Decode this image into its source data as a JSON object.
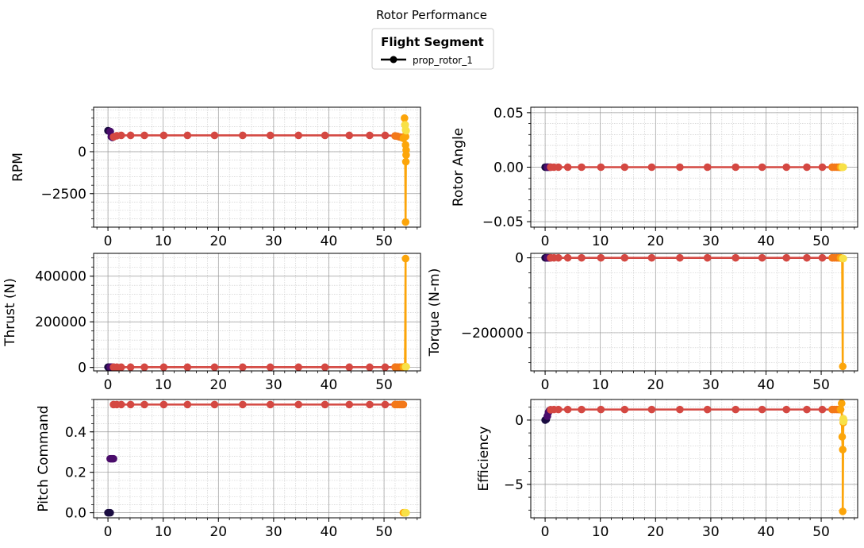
{
  "figure": {
    "title": "Rotor Performance",
    "legend": {
      "title": "Flight Segment",
      "entries": [
        "prop_rotor_1"
      ],
      "placement": "top-center"
    }
  },
  "colors": {
    "seg0": "#1a0c41",
    "seg1": "#4a0c6b",
    "seg2": "#d44842",
    "seg3": "#f37819",
    "seg4": "#fca50a",
    "seg5": "#f8e147",
    "grid_major": "#9a9a9a",
    "grid_minor": "#c8c8c8"
  },
  "chart_data": [
    {
      "type": "line",
      "name": "rpm",
      "ylabel": "RPM",
      "xlabel": "",
      "xlim": [
        -2.6,
        56.6
      ],
      "ylim": [
        -4500,
        2650
      ],
      "xticks": [
        0,
        10,
        20,
        30,
        40,
        50
      ],
      "yticks": [
        0,
        -2500
      ],
      "ytick_labels": [
        "0",
        "−2500"
      ],
      "grid": true,
      "series": [
        {
          "color": "#1a0c41",
          "x": [
            0,
            0.2,
            0.4
          ],
          "y": [
            1250,
            1230,
            1200
          ]
        },
        {
          "color": "#4a0c6b",
          "x": [
            0.4,
            0.6,
            0.8,
            1.0
          ],
          "y": [
            1200,
            900,
            850,
            880
          ]
        },
        {
          "color": "#d44842",
          "x": [
            1.0,
            1.6,
            2.4,
            4.1,
            6.6,
            10.1,
            14.4,
            19.3,
            24.4,
            29.4,
            34.5,
            39.3,
            43.7,
            47.4,
            50.2,
            52.0
          ],
          "y": [
            880,
            950,
            970,
            970,
            970,
            970,
            970,
            970,
            970,
            970,
            970,
            970,
            970,
            970,
            970,
            940
          ]
        },
        {
          "color": "#f37819",
          "x": [
            52.0,
            52.4,
            52.8,
            53.1,
            53.3,
            53.5
          ],
          "y": [
            940,
            920,
            880,
            860,
            840,
            800
          ]
        },
        {
          "color": "#fca50a",
          "x": [
            53.5,
            53.7,
            53.8,
            53.9,
            53.9,
            54.0,
            54.0,
            53.95,
            53.9,
            53.8
          ],
          "y": [
            800,
            2000,
            1600,
            900,
            400,
            100,
            -200,
            -600,
            -4200,
            1600
          ]
        },
        {
          "color": "#f8e147",
          "x": [
            53.8,
            53.9,
            54.0
          ],
          "y": [
            1600,
            1300,
            1250
          ]
        }
      ]
    },
    {
      "type": "line",
      "name": "rotor_angle",
      "ylabel": "Rotor Angle",
      "xlabel": "",
      "xlim": [
        -2.6,
        56.6
      ],
      "ylim": [
        -0.055,
        0.055
      ],
      "xticks": [
        0,
        10,
        20,
        30,
        40,
        50
      ],
      "yticks": [
        0.05,
        0.0,
        -0.05
      ],
      "ytick_labels": [
        "0.05",
        "0.00",
        "−0.05"
      ],
      "grid": true,
      "series": [
        {
          "color": "#1a0c41",
          "x": [
            0,
            0.2,
            0.4
          ],
          "y": [
            0,
            0,
            0
          ]
        },
        {
          "color": "#4a0c6b",
          "x": [
            0.4,
            0.6,
            0.8,
            1.0
          ],
          "y": [
            0,
            0,
            0,
            0
          ]
        },
        {
          "color": "#d44842",
          "x": [
            1.0,
            1.6,
            2.4,
            4.1,
            6.6,
            10.1,
            14.4,
            19.3,
            24.4,
            29.4,
            34.5,
            39.3,
            43.7,
            47.4,
            50.2,
            52.0
          ],
          "y": [
            0,
            0,
            0,
            0,
            0,
            0,
            0,
            0,
            0,
            0,
            0,
            0,
            0,
            0,
            0,
            0
          ]
        },
        {
          "color": "#f37819",
          "x": [
            52.0,
            52.4,
            52.8,
            53.1,
            53.3,
            53.5
          ],
          "y": [
            0,
            0,
            0,
            0,
            0,
            0
          ]
        },
        {
          "color": "#fca50a",
          "x": [
            53.5,
            53.7,
            53.8
          ],
          "y": [
            0,
            0,
            0
          ]
        },
        {
          "color": "#f8e147",
          "x": [
            53.8,
            53.9,
            54.0
          ],
          "y": [
            0,
            0,
            0
          ]
        }
      ]
    },
    {
      "type": "line",
      "name": "thrust",
      "ylabel": "Thrust (N)",
      "xlabel": "",
      "xlim": [
        -2.6,
        56.6
      ],
      "ylim": [
        -15000,
        500000
      ],
      "xticks": [
        0,
        10,
        20,
        30,
        40,
        50
      ],
      "yticks": [
        0,
        200000,
        400000
      ],
      "ytick_labels": [
        "0",
        "200000",
        "400000"
      ],
      "grid": true,
      "series": [
        {
          "color": "#1a0c41",
          "x": [
            0,
            0.2,
            0.4
          ],
          "y": [
            1500,
            1500,
            1500
          ]
        },
        {
          "color": "#4a0c6b",
          "x": [
            0.4,
            0.6,
            0.8,
            1.0
          ],
          "y": [
            1500,
            1200,
            1200,
            1200
          ]
        },
        {
          "color": "#d44842",
          "x": [
            1.0,
            1.6,
            2.4,
            4.1,
            6.6,
            10.1,
            14.4,
            19.3,
            24.4,
            29.4,
            34.5,
            39.3,
            43.7,
            47.4,
            50.2,
            52.0
          ],
          "y": [
            1200,
            1200,
            1200,
            1200,
            1200,
            1200,
            1200,
            1200,
            1200,
            1200,
            1200,
            1200,
            1200,
            1200,
            1200,
            1200
          ]
        },
        {
          "color": "#f37819",
          "x": [
            52.0,
            52.4,
            52.8,
            53.1,
            53.3,
            53.5
          ],
          "y": [
            1200,
            1200,
            1200,
            1200,
            1200,
            1500
          ]
        },
        {
          "color": "#fca50a",
          "x": [
            53.5,
            53.7,
            53.8,
            53.9,
            53.9
          ],
          "y": [
            1500,
            3000,
            2000,
            477000,
            2500
          ]
        },
        {
          "color": "#f8e147",
          "x": [
            53.9,
            54.0,
            54.0
          ],
          "y": [
            2500,
            3500,
            3000
          ]
        }
      ]
    },
    {
      "type": "line",
      "name": "torque",
      "ylabel": "Torque (N-m)",
      "xlabel": "",
      "xlim": [
        -2.6,
        56.6
      ],
      "ylim": [
        -302000,
        12000
      ],
      "xticks": [
        0,
        10,
        20,
        30,
        40,
        50
      ],
      "yticks": [
        0,
        -200000
      ],
      "ytick_labels": [
        "0",
        "−200000"
      ],
      "grid": true,
      "series": [
        {
          "color": "#1a0c41",
          "x": [
            0,
            0.2,
            0.4
          ],
          "y": [
            0,
            0,
            0
          ]
        },
        {
          "color": "#4a0c6b",
          "x": [
            0.4,
            0.6,
            0.8,
            1.0
          ],
          "y": [
            0,
            0,
            0,
            0
          ]
        },
        {
          "color": "#d44842",
          "x": [
            1.0,
            1.6,
            2.4,
            4.1,
            6.6,
            10.1,
            14.4,
            19.3,
            24.4,
            29.4,
            34.5,
            39.3,
            43.7,
            47.4,
            50.2,
            52.0
          ],
          "y": [
            0,
            0,
            0,
            0,
            0,
            0,
            0,
            0,
            0,
            0,
            0,
            0,
            0,
            0,
            0,
            0
          ]
        },
        {
          "color": "#f37819",
          "x": [
            52.0,
            52.4,
            52.8,
            53.1,
            53.3,
            53.5
          ],
          "y": [
            0,
            0,
            0,
            0,
            0,
            0
          ]
        },
        {
          "color": "#fca50a",
          "x": [
            53.5,
            53.7,
            53.8,
            53.9,
            53.9
          ],
          "y": [
            0,
            -1000,
            -1500,
            -290000,
            -1500
          ]
        },
        {
          "color": "#f8e147",
          "x": [
            53.9,
            54.0,
            54.0
          ],
          "y": [
            -1500,
            -2000,
            -1500
          ]
        }
      ]
    },
    {
      "type": "line",
      "name": "pitch_command",
      "ylabel": "Pitch Command",
      "xlabel": "",
      "xlim": [
        -2.6,
        56.6
      ],
      "ylim": [
        -0.025,
        0.56
      ],
      "xticks": [
        0,
        10,
        20,
        30,
        40,
        50
      ],
      "yticks": [
        0.0,
        0.2,
        0.4
      ],
      "ytick_labels": [
        "0.0",
        "0.2",
        "0.4"
      ],
      "grid": true,
      "series": [
        {
          "color": "#1a0c41",
          "x": [
            0,
            0.2,
            0.4
          ],
          "y": [
            0,
            0,
            0
          ]
        },
        {
          "color": "#4a0c6b",
          "x": [
            0.4,
            0.6,
            0.8,
            1.0
          ],
          "y": [
            0.267,
            0.267,
            0.267,
            0.267
          ]
        },
        {
          "color": "#d44842",
          "x": [
            1.0,
            1.6,
            2.4,
            4.1,
            6.6,
            10.1,
            14.4,
            19.3,
            24.4,
            29.4,
            34.5,
            39.3,
            43.7,
            47.4,
            50.2,
            52.0
          ],
          "y": [
            0.535,
            0.535,
            0.535,
            0.535,
            0.535,
            0.535,
            0.535,
            0.535,
            0.535,
            0.535,
            0.535,
            0.535,
            0.535,
            0.535,
            0.535,
            0.535
          ]
        },
        {
          "color": "#f37819",
          "x": [
            52.0,
            52.4,
            52.8,
            53.1,
            53.3,
            53.5
          ],
          "y": [
            0.535,
            0.535,
            0.535,
            0.535,
            0.535,
            0.535
          ]
        },
        {
          "color": "#fca50a",
          "x": [
            53.5,
            53.7,
            53.8
          ],
          "y": [
            0,
            0,
            0
          ]
        },
        {
          "color": "#f8e147",
          "x": [
            53.8,
            53.9,
            54.0
          ],
          "y": [
            0,
            0,
            0
          ]
        }
      ]
    },
    {
      "type": "line",
      "name": "efficiency",
      "ylabel": "Efficiency",
      "xlabel": "",
      "xlim": [
        -2.6,
        56.6
      ],
      "ylim": [
        -7.6,
        1.6
      ],
      "xticks": [
        0,
        10,
        20,
        30,
        40,
        50
      ],
      "yticks": [
        0,
        -5
      ],
      "ytick_labels": [
        "0",
        "−5"
      ],
      "grid": true,
      "series": [
        {
          "color": "#1a0c41",
          "x": [
            0,
            0.2,
            0.4
          ],
          "y": [
            0,
            0.05,
            0.3
          ]
        },
        {
          "color": "#4a0c6b",
          "x": [
            0.4,
            0.6,
            0.8,
            1.0
          ],
          "y": [
            0.3,
            0.6,
            0.75,
            0.8
          ]
        },
        {
          "color": "#d44842",
          "x": [
            1.0,
            1.6,
            2.4,
            4.1,
            6.6,
            10.1,
            14.4,
            19.3,
            24.4,
            29.4,
            34.5,
            39.3,
            43.7,
            47.4,
            50.2,
            52.0
          ],
          "y": [
            0.8,
            0.82,
            0.82,
            0.82,
            0.82,
            0.82,
            0.82,
            0.82,
            0.82,
            0.82,
            0.82,
            0.82,
            0.82,
            0.82,
            0.82,
            0.82
          ]
        },
        {
          "color": "#f37819",
          "x": [
            52.0,
            52.4,
            52.8,
            53.1,
            53.3,
            53.5
          ],
          "y": [
            0.82,
            0.82,
            0.82,
            0.82,
            0.82,
            0.82
          ]
        },
        {
          "color": "#fca50a",
          "x": [
            53.5,
            53.7,
            53.8,
            53.9,
            53.9,
            54.0,
            54.0
          ],
          "y": [
            0.82,
            1.3,
            -1.3,
            -2.3,
            -7.1,
            -0.2,
            0.1
          ]
        },
        {
          "color": "#f8e147",
          "x": [
            54.0,
            54.0,
            54.1
          ],
          "y": [
            0.1,
            -0.1,
            -0.05
          ]
        }
      ]
    }
  ]
}
